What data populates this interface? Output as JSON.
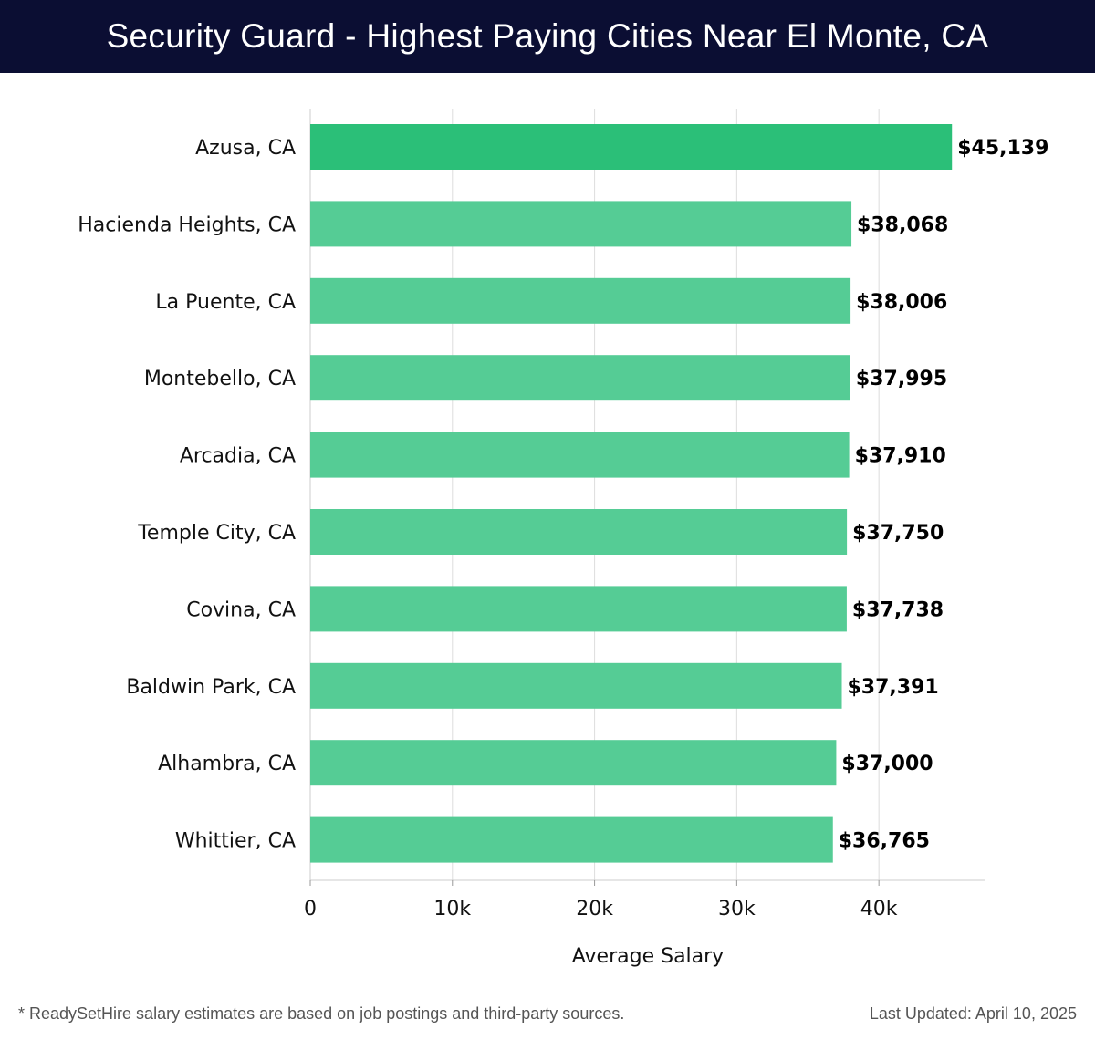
{
  "header": {
    "title": "Security Guard - Highest Paying Cities Near El Monte, CA",
    "background_color": "#0b0e33"
  },
  "chart_data": {
    "type": "bar",
    "orientation": "horizontal",
    "title": "Security Guard - Highest Paying Cities Near El Monte, CA",
    "categories": [
      "Azusa, CA",
      "Hacienda Heights, CA",
      "La Puente, CA",
      "Montebello, CA",
      "Arcadia, CA",
      "Temple City, CA",
      "Covina, CA",
      "Baldwin Park, CA",
      "Alhambra, CA",
      "Whittier, CA"
    ],
    "values": [
      45139,
      38068,
      38006,
      37995,
      37910,
      37750,
      37738,
      37391,
      37000,
      36765
    ],
    "value_labels": [
      "$45,139",
      "$38,068",
      "$38,006",
      "$37,995",
      "$37,910",
      "$37,750",
      "$37,738",
      "$37,391",
      "$37,000",
      "$36,765"
    ],
    "xlabel": "Average Salary",
    "ylabel": "",
    "xlim": [
      0,
      47500
    ],
    "x_ticks": [
      0,
      10000,
      20000,
      30000,
      40000
    ],
    "x_tick_labels": [
      "0",
      "10k",
      "20k",
      "30k",
      "40k"
    ],
    "grid": true,
    "colors": {
      "highlight": "#2bbf78",
      "bar": "#55cc95",
      "grid": "#dddddd",
      "axis": "#cccccc"
    }
  },
  "footer": {
    "note": "* ReadySetHire salary estimates are based on job postings and third-party sources.",
    "last_updated": "Last Updated: April 10, 2025"
  }
}
